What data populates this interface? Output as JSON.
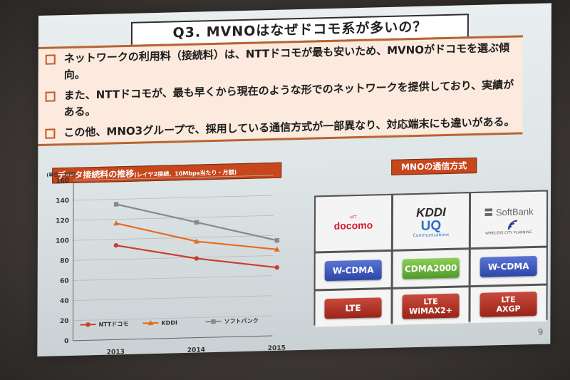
{
  "slide": {
    "title": "Q3. MVNOはなぜドコモ系が多いの？",
    "bullets": [
      "ネットワークの利用料（接続料）は、NTTドコモが最も安いため、MVNOがドコモを選ぶ傾向。",
      "また、NTTドコモが、最も早くから現在のような形でのネットワークを提供しており、実績がある。",
      "この他、MNO3グループで、採用している通信方式が一部異なり、対応端末にも違いがある。"
    ],
    "page_number": "9"
  },
  "chart_header": {
    "main": "データ接続料の推移",
    "sub": "(レイヤ2接続、10Mbps当たり・月額)"
  },
  "chart_data": {
    "type": "line",
    "ylabel": "(単位：万円)",
    "x": [
      "2013",
      "2014",
      "2015"
    ],
    "ylim": [
      0,
      160
    ],
    "yticks": [
      0,
      20,
      40,
      60,
      80,
      100,
      120,
      140,
      160
    ],
    "grid": true,
    "legend_position": "bottom-left",
    "series": [
      {
        "name": "NTTドコモ",
        "values": [
          94,
          79,
          68
        ],
        "color": "#c8402c",
        "marker": "circle"
      },
      {
        "name": "KDDI",
        "values": [
          116,
          96,
          86
        ],
        "color": "#e86a1e",
        "marker": "triangle"
      },
      {
        "name": "ソフトバンク",
        "values": [
          135,
          115,
          95
        ],
        "color": "#8a8a8a",
        "marker": "square"
      }
    ]
  },
  "mno": {
    "header": "MNOの通信方式",
    "logos": {
      "docomo_small": "NTT",
      "docomo": "docomo",
      "kddi": "KDDI",
      "uq": "UQ",
      "uq_sub": "Communications",
      "softbank": "SoftBank",
      "wireless_city": "WIRELESS CITY PLANNING"
    },
    "row2": [
      "W-CDMA",
      "CDMA2000",
      "W-CDMA"
    ],
    "row3": [
      {
        "line1": "LTE",
        "line2": ""
      },
      {
        "line1": "LTE",
        "line2": "WiMAX2+"
      },
      {
        "line1": "LTE",
        "line2": "AXGP"
      }
    ],
    "colors": {
      "blue": "#3450b8",
      "green": "#5faa30",
      "red": "#a82c1e"
    }
  }
}
